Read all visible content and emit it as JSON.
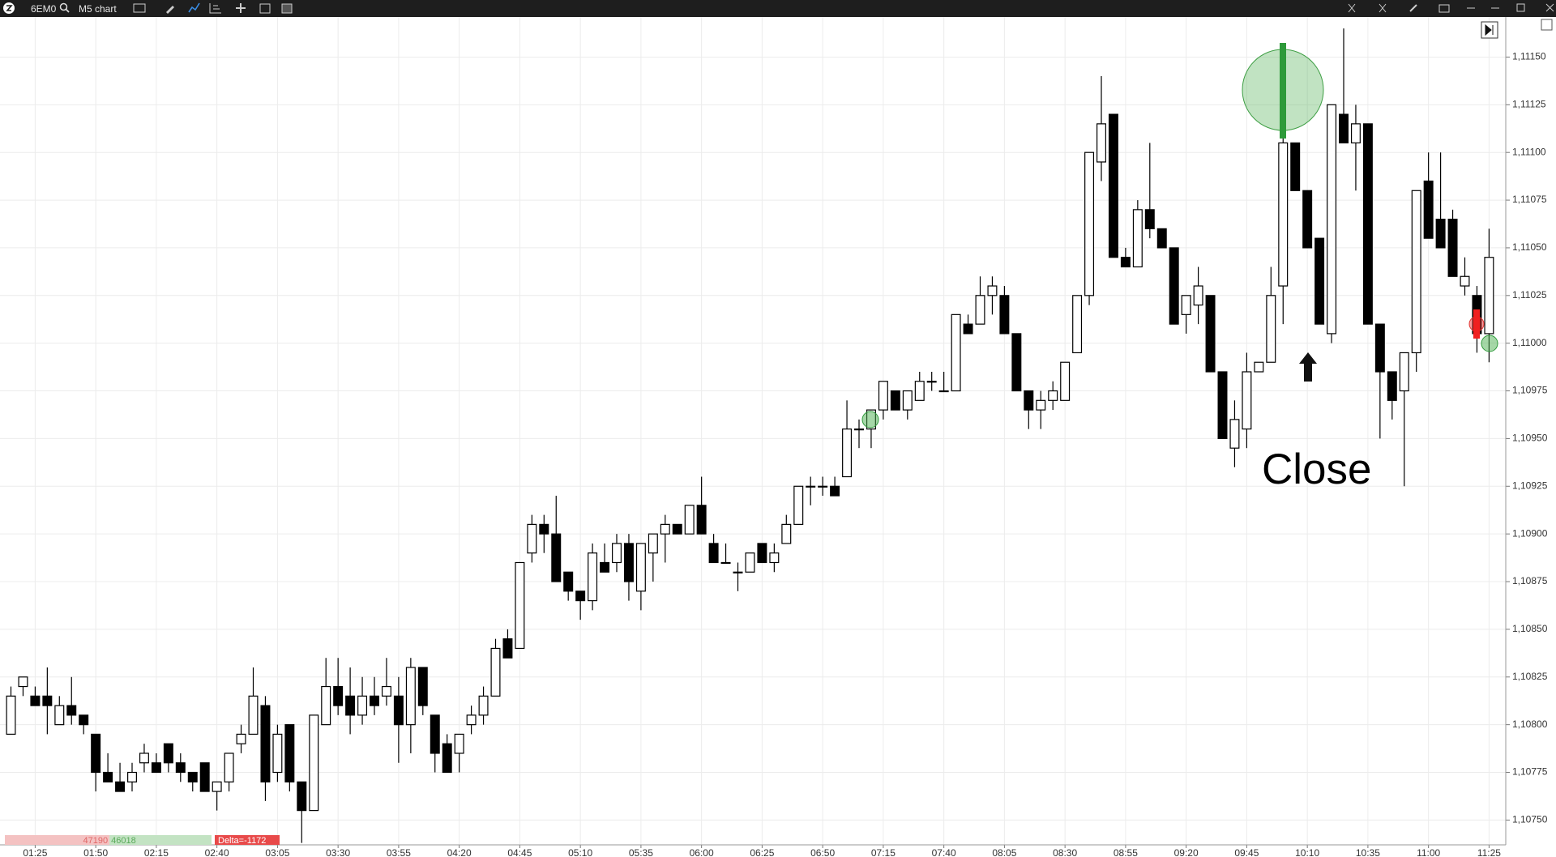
{
  "toolbar": {
    "symbol": "6EM0",
    "chart": "M5 chart"
  },
  "chart_data": {
    "type": "candlestick",
    "annotation": "Close",
    "up_color": "#ffffff",
    "down_color": "#000000",
    "grid": true,
    "categories": [
      null,
      null,
      "01:25",
      null,
      null,
      null,
      null,
      "01:50",
      null,
      null,
      null,
      null,
      "02:15",
      null,
      null,
      null,
      null,
      "02:40",
      null,
      null,
      null,
      null,
      "03:05",
      null,
      null,
      null,
      null,
      "03:30",
      null,
      null,
      null,
      null,
      "03:55",
      null,
      null,
      null,
      null,
      "04:20",
      null,
      null,
      null,
      null,
      "04:45",
      null,
      null,
      null,
      null,
      "05:10",
      null,
      null,
      null,
      null,
      "05:35",
      null,
      null,
      null,
      null,
      "06:00",
      null,
      null,
      null,
      null,
      "06:25",
      null,
      null,
      null,
      null,
      "06:50",
      null,
      null,
      null,
      null,
      "07:15",
      null,
      null,
      null,
      null,
      "07:40",
      null,
      null,
      null,
      null,
      "08:05",
      null,
      null,
      null,
      null,
      "08:30",
      null,
      null,
      null,
      null,
      "08:55",
      null,
      null,
      null,
      null,
      "09:20",
      null,
      null,
      null,
      null,
      "09:45",
      null,
      null,
      null,
      null,
      "10:10",
      null,
      null,
      null,
      null,
      "10:35",
      null,
      null,
      null,
      null,
      "11:00",
      null,
      null,
      null,
      null,
      "11:25"
    ],
    "open": [
      1.10795,
      1.1082,
      1.10815,
      1.10815,
      1.108,
      1.1081,
      1.10805,
      1.10795,
      1.10775,
      1.1077,
      1.1077,
      1.1078,
      1.1078,
      1.1079,
      1.1078,
      1.10775,
      1.1078,
      1.10765,
      1.1077,
      1.1079,
      1.10795,
      1.1081,
      1.10775,
      1.108,
      1.1077,
      1.10755,
      1.108,
      1.1082,
      1.10815,
      1.10805,
      1.10815,
      1.10815,
      1.10815,
      1.108,
      1.1083,
      1.10805,
      1.1079,
      1.10785,
      1.108,
      1.10805,
      1.10815,
      1.10845,
      1.1084,
      1.1089,
      1.10905,
      1.109,
      1.1088,
      1.1087,
      1.10865,
      1.10885,
      1.10885,
      1.10895,
      1.1087,
      1.1089,
      1.109,
      1.10905,
      1.109,
      1.10915,
      1.10895,
      1.10885,
      1.1088,
      1.1088,
      1.10895,
      1.10885,
      1.10895,
      1.10905,
      1.10925,
      1.10925,
      1.10925,
      1.1093,
      1.10955,
      1.10955,
      1.10965,
      1.10975,
      1.10965,
      1.1097,
      1.1098,
      1.10975,
      1.10975,
      1.1101,
      1.1101,
      1.11025,
      1.11025,
      1.11005,
      1.10975,
      1.10965,
      1.1097,
      1.1097,
      1.10995,
      1.11025,
      1.11095,
      1.1112,
      1.11045,
      1.1104,
      1.1107,
      1.1106,
      1.1105,
      1.11015,
      1.1102,
      1.11025,
      1.10985,
      1.10945,
      1.10955,
      1.10985,
      1.1099,
      1.1103,
      1.11105,
      1.1108,
      1.11055,
      1.11005,
      1.1112,
      1.11105,
      1.11115,
      1.1101,
      1.10985,
      1.10975,
      1.10995,
      1.11085,
      1.11065,
      1.11065,
      1.1103,
      1.11025,
      1.11005
    ],
    "high": [
      1.1082,
      1.10825,
      1.1082,
      1.1083,
      1.10815,
      1.10825,
      1.10805,
      1.10795,
      1.10785,
      1.1078,
      1.1078,
      1.1079,
      1.10785,
      1.1079,
      1.10785,
      1.10775,
      1.1078,
      1.1077,
      1.10785,
      1.108,
      1.1083,
      1.10815,
      1.108,
      1.108,
      1.1077,
      1.10805,
      1.10835,
      1.10835,
      1.1083,
      1.10825,
      1.10825,
      1.10835,
      1.10825,
      1.10835,
      1.1083,
      1.10805,
      1.10795,
      1.10795,
      1.1081,
      1.1082,
      1.10845,
      1.1085,
      1.10885,
      1.1091,
      1.1091,
      1.1092,
      1.1088,
      1.1087,
      1.10895,
      1.10895,
      1.109,
      1.109,
      1.10895,
      1.109,
      1.1091,
      1.10905,
      1.10915,
      1.1093,
      1.109,
      1.10895,
      1.10885,
      1.1089,
      1.10895,
      1.10895,
      1.1091,
      1.10925,
      1.1093,
      1.1093,
      1.1093,
      1.1097,
      1.1096,
      1.10965,
      1.1098,
      1.10975,
      1.10975,
      1.10985,
      1.10985,
      1.10985,
      1.11015,
      1.11015,
      1.11035,
      1.11035,
      1.1103,
      1.11005,
      1.10975,
      1.10975,
      1.1098,
      1.1099,
      1.11025,
      1.111,
      1.1114,
      1.1112,
      1.1105,
      1.11075,
      1.11105,
      1.1106,
      1.1105,
      1.11025,
      1.1104,
      1.11025,
      1.10985,
      1.1097,
      1.10995,
      1.1099,
      1.1104,
      1.1111,
      1.11105,
      1.1108,
      1.11055,
      1.11125,
      1.11165,
      1.11125,
      1.11115,
      1.1101,
      1.10985,
      1.10995,
      1.1108,
      1.111,
      1.111,
      1.1107,
      1.11045,
      1.1103,
      1.1106
    ],
    "low": [
      1.10795,
      1.10815,
      1.1081,
      1.10795,
      1.108,
      1.108,
      1.10795,
      1.10765,
      1.1077,
      1.10765,
      1.10765,
      1.10775,
      1.10775,
      1.10775,
      1.1077,
      1.10765,
      1.10765,
      1.10755,
      1.10765,
      1.10785,
      1.10795,
      1.1076,
      1.1077,
      1.10765,
      1.10738,
      1.10755,
      1.108,
      1.10805,
      1.10795,
      1.108,
      1.10805,
      1.1081,
      1.1078,
      1.10785,
      1.10805,
      1.10775,
      1.10775,
      1.10775,
      1.10795,
      1.108,
      1.10815,
      1.10835,
      1.1084,
      1.10885,
      1.1089,
      1.10875,
      1.10865,
      1.10855,
      1.1086,
      1.1088,
      1.1088,
      1.10865,
      1.1086,
      1.10875,
      1.10885,
      1.109,
      1.109,
      1.109,
      1.10885,
      1.10885,
      1.1087,
      1.1088,
      1.10885,
      1.1088,
      1.10895,
      1.10905,
      1.10915,
      1.1092,
      1.1092,
      1.1093,
      1.10945,
      1.10945,
      1.1096,
      1.10965,
      1.1096,
      1.1097,
      1.10975,
      1.10975,
      1.10975,
      1.11005,
      1.1101,
      1.11015,
      1.11005,
      1.10975,
      1.10955,
      1.10955,
      1.10965,
      1.1097,
      1.10995,
      1.1102,
      1.11085,
      1.11045,
      1.1104,
      1.1104,
      1.11055,
      1.1105,
      1.1101,
      1.11005,
      1.1101,
      1.10985,
      1.1095,
      1.10935,
      1.10945,
      1.10985,
      1.1099,
      1.1101,
      1.1108,
      1.1105,
      1.1101,
      1.11,
      1.11105,
      1.1108,
      1.1101,
      1.1095,
      1.1096,
      1.10925,
      1.10985,
      1.11055,
      1.1105,
      1.11035,
      1.11025,
      1.10995,
      1.1099
    ],
    "close": [
      1.10815,
      1.10825,
      1.1081,
      1.1081,
      1.1081,
      1.10805,
      1.108,
      1.10775,
      1.1077,
      1.10765,
      1.10775,
      1.10785,
      1.10775,
      1.1078,
      1.10775,
      1.1077,
      1.10765,
      1.1077,
      1.10785,
      1.10795,
      1.10815,
      1.1077,
      1.10795,
      1.1077,
      1.10755,
      1.10805,
      1.1082,
      1.1081,
      1.10805,
      1.10815,
      1.1081,
      1.1082,
      1.108,
      1.1083,
      1.1081,
      1.10785,
      1.10775,
      1.10795,
      1.10805,
      1.10815,
      1.1084,
      1.10835,
      1.10885,
      1.10905,
      1.109,
      1.10875,
      1.1087,
      1.10865,
      1.1089,
      1.1088,
      1.10895,
      1.10875,
      1.10895,
      1.109,
      1.10905,
      1.109,
      1.10915,
      1.109,
      1.10885,
      1.10885,
      1.1088,
      1.1089,
      1.10885,
      1.1089,
      1.10905,
      1.10925,
      1.10925,
      1.10925,
      1.1092,
      1.10955,
      1.10955,
      1.10965,
      1.1098,
      1.10965,
      1.10975,
      1.1098,
      1.1098,
      1.10975,
      1.11015,
      1.11005,
      1.11025,
      1.1103,
      1.11005,
      1.10975,
      1.10965,
      1.1097,
      1.10975,
      1.1099,
      1.11025,
      1.111,
      1.11115,
      1.11045,
      1.1104,
      1.1107,
      1.1106,
      1.1105,
      1.1101,
      1.11025,
      1.1103,
      1.10985,
      1.1095,
      1.1096,
      1.10985,
      1.1099,
      1.11025,
      1.11105,
      1.1108,
      1.1105,
      1.1101,
      1.11125,
      1.11105,
      1.11115,
      1.1101,
      1.10985,
      1.1097,
      1.10995,
      1.1108,
      1.11055,
      1.1105,
      1.11035,
      1.11035,
      1.11005,
      1.11045
    ],
    "ylim": [
      1.10737,
      1.11171
    ],
    "yticks": [
      {
        "value": 1.1075,
        "label": "1,10750"
      },
      {
        "value": 1.10775,
        "label": "1,10775"
      },
      {
        "value": 1.108,
        "label": "1,10800"
      },
      {
        "value": 1.10825,
        "label": "1,10825"
      },
      {
        "value": 1.1085,
        "label": "1,10850"
      },
      {
        "value": 1.10875,
        "label": "1,10875"
      },
      {
        "value": 1.109,
        "label": "1,10900"
      },
      {
        "value": 1.10925,
        "label": "1,10925"
      },
      {
        "value": 1.1095,
        "label": "1,10950"
      },
      {
        "value": 1.10975,
        "label": "1,10975"
      },
      {
        "value": 1.11,
        "label": "1,11000"
      },
      {
        "value": 1.11025,
        "label": "1,11025"
      },
      {
        "value": 1.1105,
        "label": "1,11050"
      },
      {
        "value": 1.11075,
        "label": "1,11075"
      },
      {
        "value": 1.111,
        "label": "1,11100"
      },
      {
        "value": 1.11125,
        "label": "1,11125"
      },
      {
        "value": 1.1115,
        "label": "1,11150"
      }
    ]
  },
  "volume_bar": {
    "sell": 47190,
    "buy": 46018,
    "delta": {
      "value": -1172,
      "label": "Delta=-1172"
    }
  }
}
